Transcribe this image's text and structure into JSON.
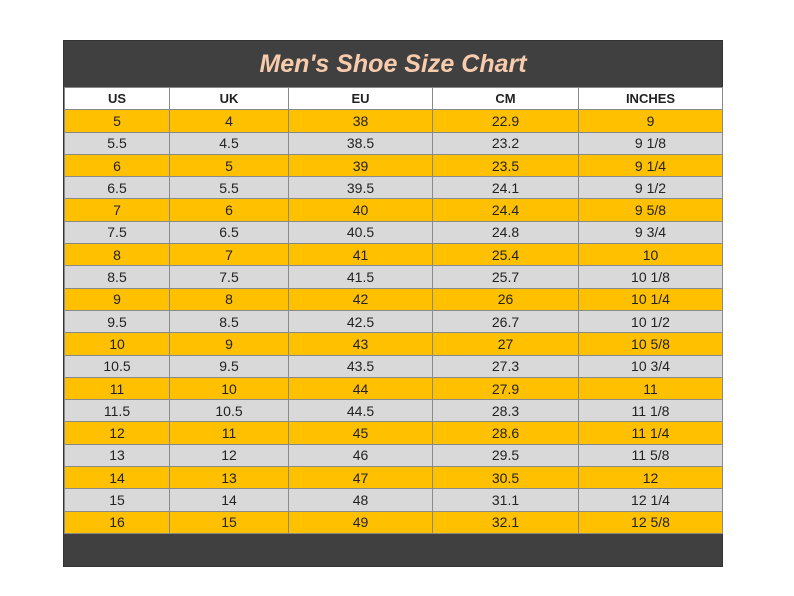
{
  "table": {
    "title": "Men's Shoe Size Chart",
    "header": [
      "US",
      "UK",
      "EU",
      "CM",
      "INCHES"
    ],
    "rows": [
      [
        "5",
        "4",
        "38",
        "22.9",
        "9"
      ],
      [
        "5.5",
        "4.5",
        "38.5",
        "23.2",
        "9 1/8"
      ],
      [
        "6",
        "5",
        "39",
        "23.5",
        "9 1/4"
      ],
      [
        "6.5",
        "5.5",
        "39.5",
        "24.1",
        "9 1/2"
      ],
      [
        "7",
        "6",
        "40",
        "24.4",
        "9 5/8"
      ],
      [
        "7.5",
        "6.5",
        "40.5",
        "24.8",
        "9 3/4"
      ],
      [
        "8",
        "7",
        "41",
        "25.4",
        "10"
      ],
      [
        "8.5",
        "7.5",
        "41.5",
        "25.7",
        "10 1/8"
      ],
      [
        "9",
        "8",
        "42",
        "26",
        "10 1/4"
      ],
      [
        "9.5",
        "8.5",
        "42.5",
        "26.7",
        "10 1/2"
      ],
      [
        "10",
        "9",
        "43",
        "27",
        "10 5/8"
      ],
      [
        "10.5",
        "9.5",
        "43.5",
        "27.3",
        "10 3/4"
      ],
      [
        "11",
        "10",
        "44",
        "27.9",
        "11"
      ],
      [
        "11.5",
        "10.5",
        "44.5",
        "28.3",
        "11 1/8"
      ],
      [
        "12",
        "11",
        "45",
        "28.6",
        "11 1/4"
      ],
      [
        "13",
        "12",
        "46",
        "29.5",
        "11 5/8"
      ],
      [
        "14",
        "13",
        "47",
        "30.5",
        "12"
      ],
      [
        "15",
        "14",
        "48",
        "31.1",
        "12 1/4"
      ],
      [
        "16",
        "15",
        "49",
        "32.1",
        "12 5/8"
      ]
    ]
  }
}
